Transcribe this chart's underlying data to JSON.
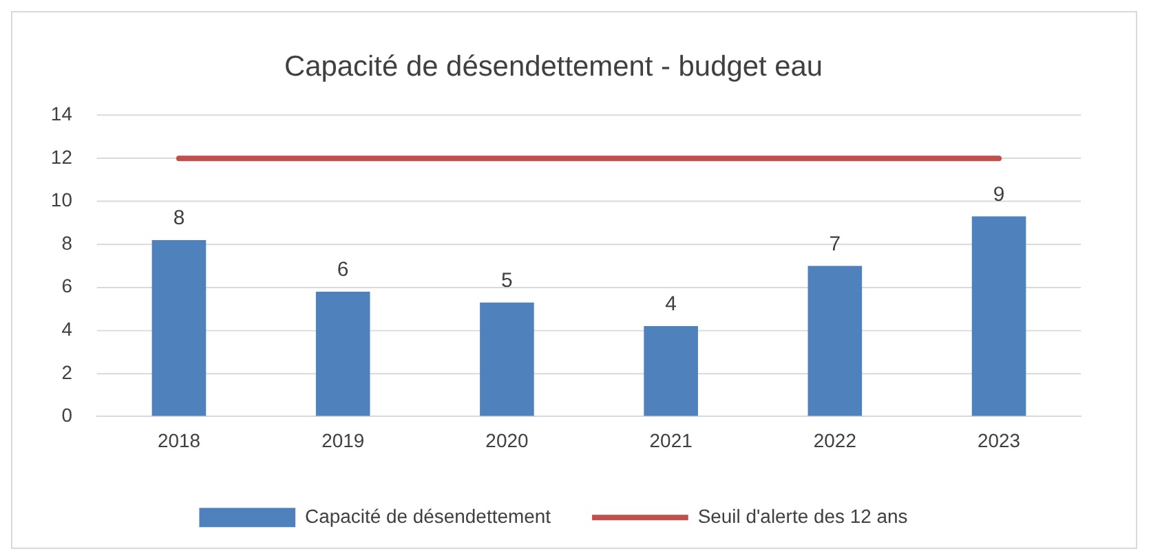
{
  "chart_data": {
    "type": "bar",
    "title": "Capacité de désendettement - budget eau",
    "categories": [
      "2018",
      "2019",
      "2020",
      "2021",
      "2022",
      "2023"
    ],
    "series": [
      {
        "name": "Capacité de désendettement",
        "color": "#4f81bd",
        "values": [
          8.2,
          5.8,
          5.3,
          4.2,
          7.0,
          9.3
        ],
        "value_labels": [
          "8",
          "6",
          "5",
          "4",
          "7",
          "9"
        ]
      },
      {
        "name": "Seuil d'alerte des 12 ans",
        "type": "line",
        "color": "#c0504d",
        "values": [
          12,
          12,
          12,
          12,
          12,
          12
        ],
        "marker": "none"
      }
    ],
    "ylim": [
      0,
      14
    ],
    "yticks": [
      0,
      2,
      4,
      6,
      8,
      10,
      12,
      14
    ],
    "grid": "y",
    "legend": "bottom"
  }
}
